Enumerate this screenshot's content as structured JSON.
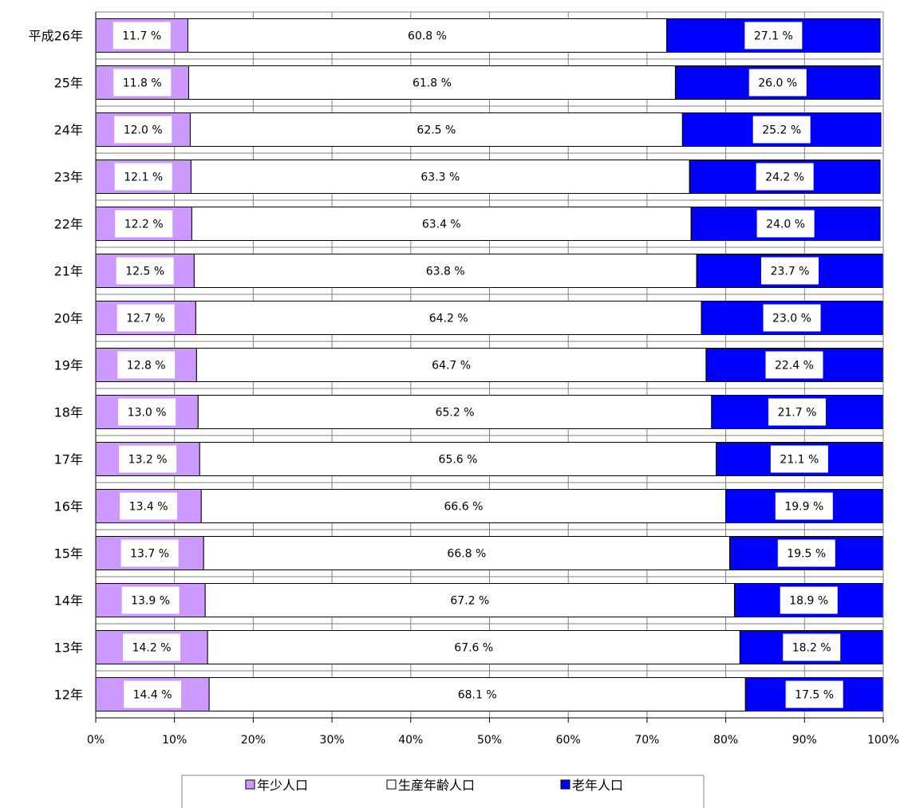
{
  "chart_data": {
    "type": "bar",
    "orientation": "horizontal",
    "stacked": true,
    "normalized": true,
    "categories": [
      "平成26年",
      "25年",
      "24年",
      "23年",
      "22年",
      "21年",
      "20年",
      "19年",
      "18年",
      "17年",
      "16年",
      "15年",
      "14年",
      "13年",
      "12年"
    ],
    "series": [
      {
        "name": "年少人口",
        "color": "#cc99ff",
        "values": [
          11.7,
          11.8,
          12.0,
          12.1,
          12.2,
          12.5,
          12.7,
          12.8,
          13.0,
          13.2,
          13.4,
          13.7,
          13.9,
          14.2,
          14.4
        ],
        "labels": [
          "11.7 %",
          "11.8 %",
          "12.0 %",
          "12.1 %",
          "12.2 %",
          "12.5 %",
          "12.7 %",
          "12.8 %",
          "13.0 %",
          "13.2 %",
          "13.4 %",
          "13.7 %",
          "13.9 %",
          "14.2 %",
          "14.4 %"
        ]
      },
      {
        "name": "生産年齢人口",
        "color": "#ffffff",
        "values": [
          60.8,
          61.8,
          62.5,
          63.3,
          63.4,
          63.8,
          64.2,
          64.7,
          65.2,
          65.6,
          66.6,
          66.8,
          67.2,
          67.6,
          68.1
        ],
        "labels": [
          "60.8 %",
          "61.8 %",
          "62.5 %",
          "63.3 %",
          "63.4 %",
          "63.8 %",
          "64.2 %",
          "64.7 %",
          "65.2 %",
          "65.6 %",
          "66.6 %",
          "66.8 %",
          "67.2 %",
          "67.6 %",
          "68.1 %"
        ]
      },
      {
        "name": "老年人口",
        "color": "#0000ff",
        "values": [
          27.1,
          26.0,
          25.2,
          24.2,
          24.0,
          23.7,
          23.0,
          22.4,
          21.7,
          21.1,
          19.9,
          19.5,
          18.9,
          18.2,
          17.5
        ],
        "labels": [
          "27.1 %",
          "26.0 %",
          "25.2 %",
          "24.2 %",
          "24.0 %",
          "23.7 %",
          "23.0 %",
          "22.4 %",
          "21.7 %",
          "21.1 %",
          "19.9 %",
          "19.5 %",
          "18.9 %",
          "18.2 %",
          "17.5 %"
        ]
      }
    ],
    "x_ticks": [
      "0%",
      "10%",
      "20%",
      "30%",
      "40%",
      "50%",
      "60%",
      "70%",
      "80%",
      "90%",
      "100%"
    ],
    "xlim": [
      0,
      100
    ],
    "grid": true,
    "legend_position": "bottom"
  }
}
